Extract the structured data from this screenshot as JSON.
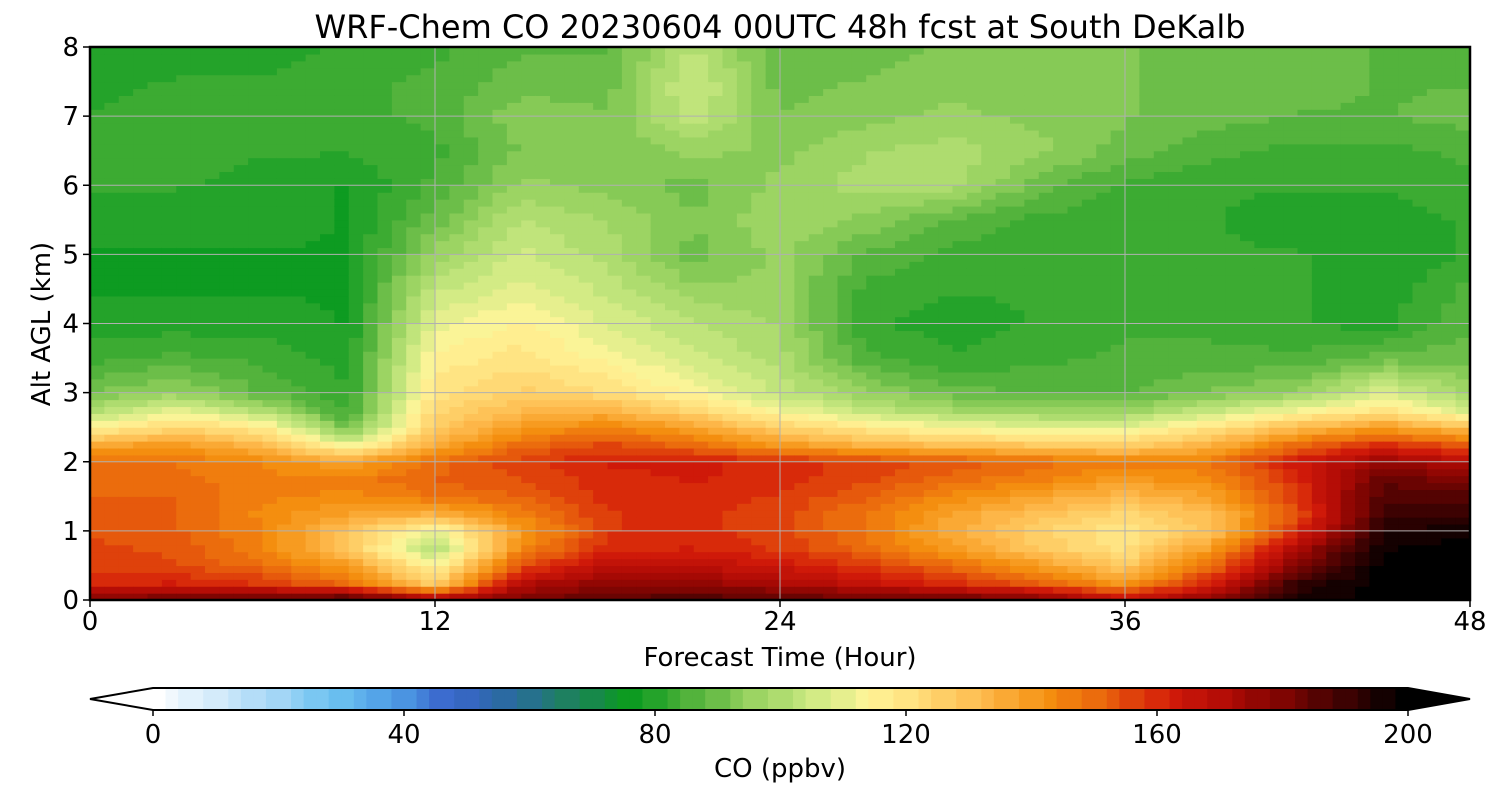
{
  "chart_data": {
    "type": "heatmap",
    "title": "WRF-Chem CO  20230604 00UTC 48h fcst at South DeKalb",
    "xlabel": "Forecast Time (Hour)",
    "ylabel": "Alt AGL (km)",
    "xlim": [
      0,
      48
    ],
    "ylim": [
      0,
      8
    ],
    "xticks": [
      0,
      12,
      24,
      36,
      48
    ],
    "yticks": [
      0,
      1,
      2,
      3,
      4,
      5,
      6,
      7,
      8
    ],
    "grid": true,
    "colorbar": {
      "label": "CO  (ppbv)",
      "min": 0,
      "max": 200,
      "ticks": [
        0,
        40,
        80,
        120,
        160,
        200
      ],
      "extend": "both",
      "orientation": "horizontal",
      "placement": "bottom",
      "colors": [
        "#ffffff",
        "#d6ecfa",
        "#a9d8f7",
        "#6ec3f1",
        "#4f9fe6",
        "#3a66cc",
        "#2a6aa0",
        "#1e8060",
        "#0a9a20",
        "#4cb038",
        "#94d05e",
        "#c8e880",
        "#fff59a",
        "#ffd873",
        "#fdb648",
        "#f5900f",
        "#e8600c",
        "#d41c0a",
        "#b00a05",
        "#7a0502",
        "#3a0202",
        "#000000"
      ]
    },
    "x_hours": [
      0,
      3,
      6,
      9,
      12,
      15,
      18,
      21,
      24,
      27,
      30,
      33,
      36,
      39,
      42,
      45,
      48
    ],
    "z_km": [
      0,
      0.25,
      0.5,
      0.75,
      1,
      1.25,
      1.5,
      1.75,
      2,
      2.25,
      2.5,
      2.75,
      3,
      3.5,
      4,
      4.5,
      5,
      5.5,
      6,
      6.5,
      7,
      7.5,
      8
    ],
    "co_ppbv": [
      [
        182,
        183,
        185,
        190,
        176,
        180,
        186,
        188,
        186,
        184,
        184,
        182,
        168,
        178,
        196,
        200,
        200
      ],
      [
        160,
        162,
        158,
        150,
        126,
        170,
        178,
        176,
        172,
        166,
        160,
        152,
        140,
        162,
        192,
        200,
        200
      ],
      [
        158,
        155,
        150,
        140,
        114,
        155,
        168,
        168,
        164,
        158,
        150,
        140,
        128,
        150,
        180,
        200,
        200
      ],
      [
        156,
        154,
        146,
        128,
        100,
        145,
        160,
        162,
        158,
        150,
        140,
        128,
        120,
        140,
        172,
        198,
        200
      ],
      [
        154,
        152,
        145,
        130,
        110,
        140,
        158,
        160,
        156,
        148,
        136,
        126,
        118,
        130,
        160,
        194,
        198
      ],
      [
        152,
        152,
        144,
        138,
        134,
        146,
        158,
        160,
        156,
        148,
        138,
        130,
        124,
        132,
        155,
        190,
        190
      ],
      [
        152,
        152,
        146,
        144,
        148,
        152,
        160,
        160,
        158,
        152,
        144,
        138,
        132,
        138,
        158,
        188,
        186
      ],
      [
        150,
        150,
        146,
        146,
        152,
        155,
        160,
        162,
        160,
        156,
        150,
        146,
        140,
        144,
        160,
        184,
        180
      ],
      [
        150,
        148,
        145,
        138,
        150,
        157,
        162,
        163,
        160,
        157,
        154,
        150,
        146,
        148,
        164,
        176,
        170
      ],
      [
        136,
        140,
        132,
        110,
        136,
        150,
        156,
        150,
        140,
        134,
        130,
        128,
        126,
        134,
        150,
        160,
        152
      ],
      [
        114,
        124,
        118,
        90,
        128,
        140,
        146,
        138,
        126,
        118,
        112,
        110,
        110,
        120,
        132,
        140,
        130
      ],
      [
        100,
        110,
        100,
        84,
        124,
        132,
        134,
        124,
        112,
        104,
        98,
        96,
        96,
        104,
        112,
        120,
        106
      ],
      [
        92,
        96,
        88,
        82,
        120,
        126,
        122,
        114,
        104,
        96,
        90,
        88,
        88,
        92,
        96,
        108,
        98
      ],
      [
        84,
        86,
        84,
        80,
        116,
        120,
        114,
        106,
        100,
        86,
        82,
        84,
        86,
        86,
        86,
        90,
        90
      ],
      [
        80,
        80,
        80,
        78,
        110,
        116,
        108,
        102,
        98,
        82,
        80,
        82,
        84,
        84,
        82,
        80,
        88
      ],
      [
        78,
        78,
        78,
        78,
        104,
        110,
        104,
        96,
        96,
        84,
        82,
        82,
        84,
        84,
        82,
        80,
        86
      ],
      [
        78,
        78,
        78,
        78,
        96,
        106,
        100,
        90,
        96,
        88,
        84,
        82,
        82,
        82,
        82,
        78,
        82
      ],
      [
        80,
        80,
        80,
        78,
        90,
        102,
        98,
        92,
        98,
        94,
        88,
        84,
        82,
        82,
        80,
        80,
        82
      ],
      [
        82,
        82,
        80,
        78,
        86,
        96,
        94,
        90,
        96,
        100,
        100,
        90,
        84,
        82,
        82,
        82,
        84
      ],
      [
        84,
        84,
        82,
        82,
        84,
        92,
        92,
        96,
        94,
        98,
        100,
        96,
        90,
        86,
        84,
        84,
        86
      ],
      [
        82,
        84,
        84,
        84,
        86,
        94,
        92,
        104,
        92,
        94,
        96,
        94,
        92,
        90,
        88,
        88,
        90
      ],
      [
        80,
        82,
        82,
        84,
        86,
        90,
        90,
        106,
        90,
        92,
        94,
        92,
        92,
        90,
        90,
        88,
        88
      ],
      [
        80,
        80,
        80,
        82,
        84,
        88,
        88,
        102,
        88,
        90,
        92,
        92,
        92,
        90,
        90,
        88,
        88
      ]
    ]
  }
}
